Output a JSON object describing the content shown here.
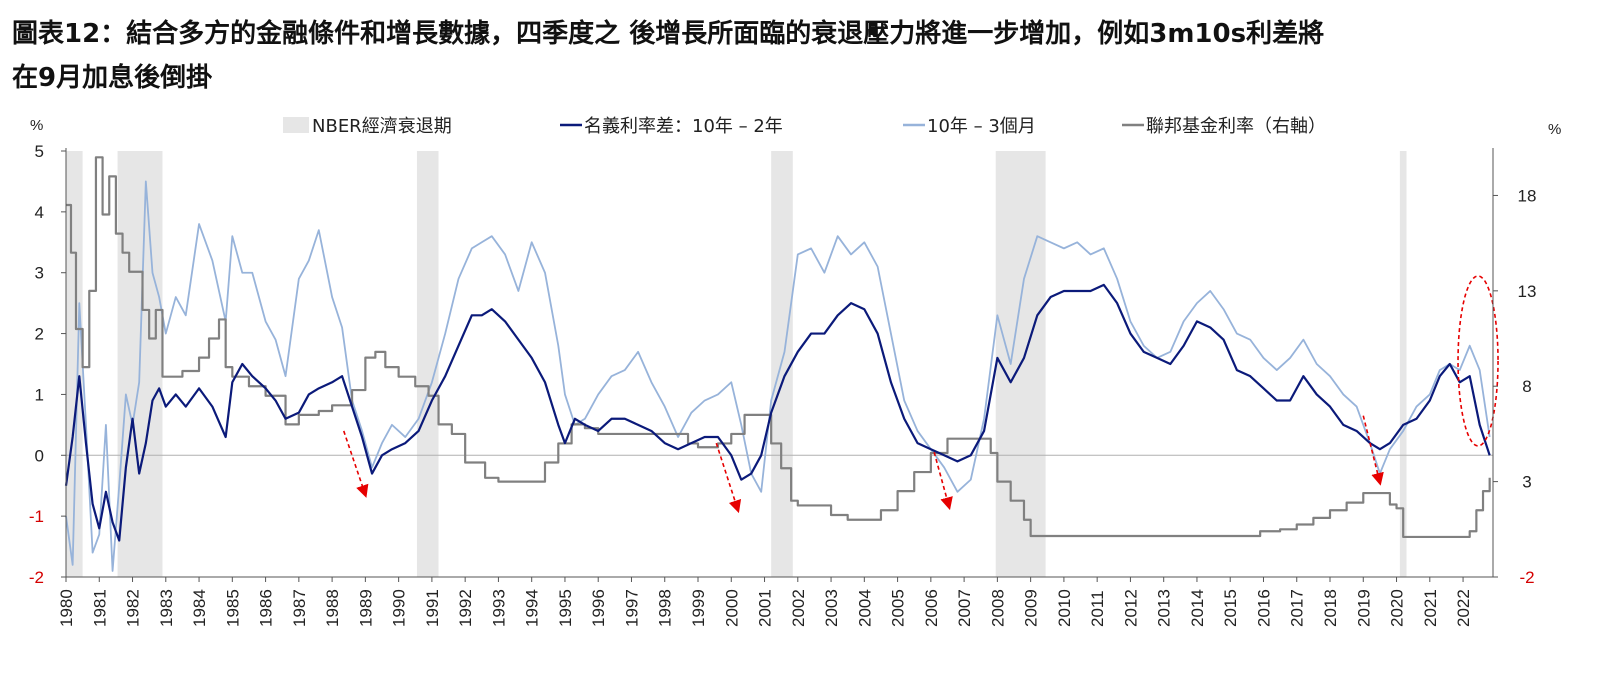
{
  "title_line1": "圖表12：結合多方的金融條件和增長數據，四季度之 後增長所面臨的衰退壓力將進一步增加，例如3m10s利差將",
  "title_line2": "在9月加息後倒掛",
  "chart_data": {
    "type": "line",
    "x_start": 1980,
    "x_end": 2022.9,
    "x_tick_labels": [
      "1980",
      "1981",
      "1982",
      "1983",
      "1984",
      "1985",
      "1986",
      "1987",
      "1988",
      "1989",
      "1990",
      "1991",
      "1992",
      "1993",
      "1994",
      "1995",
      "1996",
      "1997",
      "1998",
      "1999",
      "2000",
      "2001",
      "2002",
      "2003",
      "2004",
      "2005",
      "2006",
      "2007",
      "2008",
      "2009",
      "2010",
      "2011",
      "2012",
      "2013",
      "2014",
      "2015",
      "2016",
      "2017",
      "2018",
      "2019",
      "2020",
      "2021",
      "2022"
    ],
    "y_left": {
      "unit": "%",
      "range": [
        -2,
        5
      ],
      "ticks": [
        -2,
        -1,
        0,
        1,
        2,
        3,
        4,
        5
      ]
    },
    "y_right": {
      "unit": "%",
      "range": [
        -2,
        20.33
      ],
      "ticks": [
        -2,
        3,
        8,
        13,
        18
      ]
    },
    "legend": {
      "recession": "NBER經濟衰退期",
      "s10_2": "名義利率差：10年 – 2年",
      "s10_3m": "10年 – 3個月",
      "fed": "聯邦基金利率（右軸）"
    },
    "colors": {
      "recession": "#e6e6e6",
      "s10_2": "#0b1a7a",
      "s10_3m": "#97b3da",
      "fed": "#808080",
      "zero": "#b0b0b0",
      "arrow": "#e60000",
      "ellipse": "#e60000"
    },
    "recessions": [
      [
        1980.0,
        1980.5
      ],
      [
        1981.55,
        1982.9
      ],
      [
        1990.55,
        1991.2
      ],
      [
        2001.2,
        2001.85
      ],
      [
        2007.95,
        2009.45
      ],
      [
        2020.1,
        2020.3
      ]
    ],
    "series": [
      {
        "name": "名義利率差：10年 – 2年",
        "key": "s10_2",
        "axis": "left",
        "x": [
          1980.0,
          1980.2,
          1980.4,
          1980.6,
          1980.8,
          1981.0,
          1981.2,
          1981.4,
          1981.6,
          1981.8,
          1982.0,
          1982.2,
          1982.4,
          1982.6,
          1982.8,
          1983.0,
          1983.3,
          1983.6,
          1984.0,
          1984.4,
          1984.8,
          1985.0,
          1985.3,
          1985.6,
          1986.0,
          1986.3,
          1986.6,
          1987.0,
          1987.3,
          1987.6,
          1988.0,
          1988.3,
          1988.6,
          1988.9,
          1989.2,
          1989.5,
          1989.8,
          1990.2,
          1990.6,
          1991.0,
          1991.4,
          1991.8,
          1992.2,
          1992.5,
          1992.8,
          1993.2,
          1993.6,
          1994.0,
          1994.4,
          1994.8,
          1995.0,
          1995.3,
          1995.6,
          1996.0,
          1996.4,
          1996.8,
          1997.2,
          1997.6,
          1998.0,
          1998.4,
          1998.8,
          1999.2,
          1999.6,
          2000.0,
          2000.3,
          2000.6,
          2000.9,
          2001.2,
          2001.6,
          2002.0,
          2002.4,
          2002.8,
          2003.2,
          2003.6,
          2004.0,
          2004.4,
          2004.8,
          2005.2,
          2005.6,
          2006.0,
          2006.4,
          2006.8,
          2007.2,
          2007.6,
          2008.0,
          2008.4,
          2008.8,
          2009.2,
          2009.6,
          2010.0,
          2010.4,
          2010.8,
          2011.2,
          2011.6,
          2012.0,
          2012.4,
          2012.8,
          2013.2,
          2013.6,
          2014.0,
          2014.4,
          2014.8,
          2015.2,
          2015.6,
          2016.0,
          2016.4,
          2016.8,
          2017.2,
          2017.6,
          2018.0,
          2018.4,
          2018.8,
          2019.2,
          2019.5,
          2019.8,
          2020.2,
          2020.6,
          2021.0,
          2021.3,
          2021.6,
          2021.9,
          2022.2,
          2022.5,
          2022.8
        ],
        "values": [
          -0.5,
          0.3,
          1.3,
          0.2,
          -0.8,
          -1.2,
          -0.6,
          -1.1,
          -1.4,
          -0.2,
          0.6,
          -0.3,
          0.2,
          0.9,
          1.1,
          0.8,
          1.0,
          0.8,
          1.1,
          0.8,
          0.3,
          1.2,
          1.5,
          1.3,
          1.1,
          0.9,
          0.6,
          0.7,
          1.0,
          1.1,
          1.2,
          1.3,
          0.8,
          0.3,
          -0.3,
          0.0,
          0.1,
          0.2,
          0.4,
          0.9,
          1.3,
          1.8,
          2.3,
          2.3,
          2.4,
          2.2,
          1.9,
          1.6,
          1.2,
          0.5,
          0.2,
          0.6,
          0.5,
          0.4,
          0.6,
          0.6,
          0.5,
          0.4,
          0.2,
          0.1,
          0.2,
          0.3,
          0.3,
          0.0,
          -0.4,
          -0.3,
          0.0,
          0.7,
          1.3,
          1.7,
          2.0,
          2.0,
          2.3,
          2.5,
          2.4,
          2.0,
          1.2,
          0.6,
          0.2,
          0.1,
          0.0,
          -0.1,
          0.0,
          0.4,
          1.6,
          1.2,
          1.6,
          2.3,
          2.6,
          2.7,
          2.7,
          2.7,
          2.8,
          2.5,
          2.0,
          1.7,
          1.6,
          1.5,
          1.8,
          2.2,
          2.1,
          1.9,
          1.4,
          1.3,
          1.1,
          0.9,
          0.9,
          1.3,
          1.0,
          0.8,
          0.5,
          0.4,
          0.2,
          0.1,
          0.2,
          0.5,
          0.6,
          0.9,
          1.3,
          1.5,
          1.2,
          1.3,
          0.5,
          0.0
        ]
      },
      {
        "name": "10年 – 3個月",
        "key": "s10_3m",
        "axis": "left",
        "x": [
          1980.0,
          1980.2,
          1980.4,
          1980.6,
          1980.8,
          1981.0,
          1981.2,
          1981.4,
          1981.6,
          1981.8,
          1982.0,
          1982.2,
          1982.4,
          1982.6,
          1982.8,
          1983.0,
          1983.3,
          1983.6,
          1984.0,
          1984.4,
          1984.8,
          1985.0,
          1985.3,
          1985.6,
          1986.0,
          1986.3,
          1986.6,
          1987.0,
          1987.3,
          1987.6,
          1988.0,
          1988.3,
          1988.6,
          1988.9,
          1989.2,
          1989.5,
          1989.8,
          1990.2,
          1990.6,
          1991.0,
          1991.4,
          1991.8,
          1992.2,
          1992.5,
          1992.8,
          1993.2,
          1993.6,
          1994.0,
          1994.4,
          1994.8,
          1995.0,
          1995.3,
          1995.6,
          1996.0,
          1996.4,
          1996.8,
          1997.2,
          1997.6,
          1998.0,
          1998.4,
          1998.8,
          1999.2,
          1999.6,
          2000.0,
          2000.3,
          2000.6,
          2000.9,
          2001.2,
          2001.6,
          2002.0,
          2002.4,
          2002.8,
          2003.2,
          2003.6,
          2004.0,
          2004.4,
          2004.8,
          2005.2,
          2005.6,
          2006.0,
          2006.4,
          2006.8,
          2007.2,
          2007.6,
          2008.0,
          2008.4,
          2008.8,
          2009.2,
          2009.6,
          2010.0,
          2010.4,
          2010.8,
          2011.2,
          2011.6,
          2012.0,
          2012.4,
          2012.8,
          2013.2,
          2013.6,
          2014.0,
          2014.4,
          2014.8,
          2015.2,
          2015.6,
          2016.0,
          2016.4,
          2016.8,
          2017.2,
          2017.6,
          2018.0,
          2018.4,
          2018.8,
          2019.2,
          2019.5,
          2019.8,
          2020.2,
          2020.6,
          2021.0,
          2021.3,
          2021.6,
          2021.9,
          2022.2,
          2022.5,
          2022.8
        ],
        "values": [
          -1.0,
          -1.8,
          2.5,
          0.5,
          -1.6,
          -1.3,
          0.5,
          -1.9,
          -0.5,
          1.0,
          0.5,
          1.2,
          4.5,
          3.0,
          2.6,
          2.0,
          2.6,
          2.3,
          3.8,
          3.2,
          2.2,
          3.6,
          3.0,
          3.0,
          2.2,
          1.9,
          1.3,
          2.9,
          3.2,
          3.7,
          2.6,
          2.1,
          0.9,
          0.4,
          -0.2,
          0.2,
          0.5,
          0.3,
          0.6,
          1.2,
          2.0,
          2.9,
          3.4,
          3.5,
          3.6,
          3.3,
          2.7,
          3.5,
          3.0,
          1.8,
          1.0,
          0.5,
          0.6,
          1.0,
          1.3,
          1.4,
          1.7,
          1.2,
          0.8,
          0.3,
          0.7,
          0.9,
          1.0,
          1.2,
          0.5,
          -0.3,
          -0.6,
          0.9,
          1.7,
          3.3,
          3.4,
          3.0,
          3.6,
          3.3,
          3.5,
          3.1,
          2.0,
          0.9,
          0.4,
          0.1,
          -0.2,
          -0.6,
          -0.4,
          0.6,
          2.3,
          1.5,
          2.9,
          3.6,
          3.5,
          3.4,
          3.5,
          3.3,
          3.4,
          2.9,
          2.2,
          1.8,
          1.6,
          1.7,
          2.2,
          2.5,
          2.7,
          2.4,
          2.0,
          1.9,
          1.6,
          1.4,
          1.6,
          1.9,
          1.5,
          1.3,
          1.0,
          0.8,
          0.2,
          -0.3,
          0.1,
          0.4,
          0.8,
          1.0,
          1.4,
          1.5,
          1.4,
          1.8,
          1.4,
          0.3
        ]
      },
      {
        "name": "聯邦基金利率（右軸）",
        "key": "fed",
        "axis": "right",
        "x": [
          1980.0,
          1980.15,
          1980.3,
          1980.5,
          1980.7,
          1980.9,
          1981.1,
          1981.3,
          1981.5,
          1981.7,
          1981.9,
          1982.1,
          1982.3,
          1982.5,
          1982.7,
          1982.9,
          1983.5,
          1984.0,
          1984.3,
          1984.6,
          1984.8,
          1985.0,
          1985.5,
          1986.0,
          1986.6,
          1987.0,
          1987.6,
          1988.0,
          1988.6,
          1989.0,
          1989.3,
          1989.6,
          1990.0,
          1990.5,
          1990.9,
          1991.2,
          1991.6,
          1992.0,
          1992.6,
          1993.0,
          1993.5,
          1994.0,
          1994.4,
          1994.8,
          1995.2,
          1995.6,
          1996.0,
          1997.0,
          1998.0,
          1998.7,
          1999.0,
          1999.6,
          2000.0,
          2000.4,
          2000.9,
          2001.2,
          2001.5,
          2001.8,
          2002.0,
          2003.0,
          2003.5,
          2004.0,
          2004.5,
          2005.0,
          2005.5,
          2006.0,
          2006.5,
          2007.0,
          2007.5,
          2007.8,
          2008.0,
          2008.4,
          2008.8,
          2009.0,
          2010.0,
          2011.0,
          2012.0,
          2013.0,
          2014.0,
          2015.0,
          2015.9,
          2016.5,
          2017.0,
          2017.5,
          2018.0,
          2018.5,
          2019.0,
          2019.5,
          2019.8,
          2020.0,
          2020.2,
          2021.0,
          2022.0,
          2022.2,
          2022.4,
          2022.6,
          2022.8
        ],
        "values": [
          17.5,
          15,
          11,
          9,
          13,
          20,
          17,
          19,
          16,
          15,
          14,
          14,
          12,
          10.5,
          12,
          8.5,
          8.8,
          9.5,
          10.5,
          11.5,
          9,
          8.5,
          8,
          7.5,
          6,
          6.5,
          6.7,
          7,
          7.8,
          9.5,
          9.8,
          9,
          8.5,
          8,
          7.5,
          6,
          5.5,
          4,
          3.2,
          3,
          3,
          3,
          4,
          5,
          6,
          5.8,
          5.5,
          5.5,
          5.5,
          5,
          4.8,
          5,
          5.5,
          6.5,
          6.5,
          5,
          3.7,
          2,
          1.75,
          1.25,
          1,
          1,
          1.5,
          2.5,
          3.5,
          4.5,
          5.25,
          5.25,
          5.25,
          4.5,
          3,
          2,
          1,
          0.15,
          0.15,
          0.15,
          0.15,
          0.15,
          0.15,
          0.15,
          0.4,
          0.5,
          0.75,
          1.1,
          1.5,
          1.9,
          2.4,
          2.4,
          1.8,
          1.6,
          0.1,
          0.1,
          0.1,
          0.4,
          1.5,
          2.5,
          3.2
        ]
      }
    ],
    "annotations": "red dashed arrows marking curve inversions before recessions; red dashed ellipse around 2022 latest readings"
  }
}
